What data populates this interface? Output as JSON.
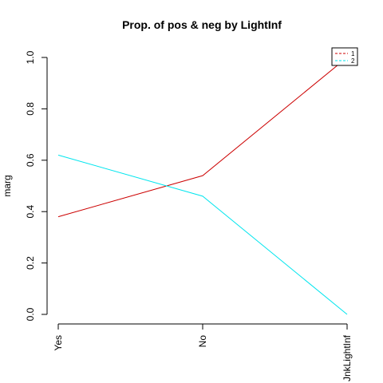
{
  "chart_data": {
    "type": "line",
    "title": "Prop. of pos & neg by LightInf",
    "xlabel": "",
    "ylabel": "marg",
    "categories": [
      "Yes",
      "No",
      "JnkLightInf"
    ],
    "ylim": [
      0,
      1
    ],
    "yticks": [
      "0.0",
      "0.2",
      "0.4",
      "0.6",
      "0.8",
      "1.0"
    ],
    "series": [
      {
        "name": "1",
        "values": [
          0.38,
          0.54,
          1.0
        ],
        "color": "#cc0000",
        "linetype": "dashed-legend"
      },
      {
        "name": "2",
        "values": [
          0.62,
          0.46,
          0.0
        ],
        "color": "#00e5ee",
        "linetype": "dashed-legend"
      }
    ],
    "legend_position": "top-right",
    "grid": false
  }
}
